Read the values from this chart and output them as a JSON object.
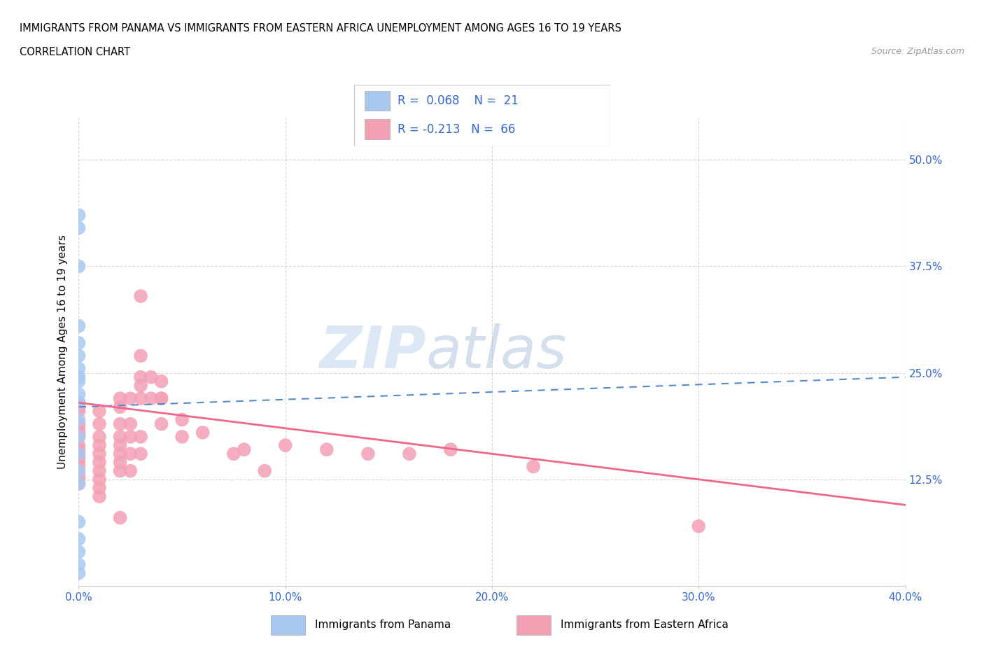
{
  "title_line1": "IMMIGRANTS FROM PANAMA VS IMMIGRANTS FROM EASTERN AFRICA UNEMPLOYMENT AMONG AGES 16 TO 19 YEARS",
  "title_line2": "CORRELATION CHART",
  "source_text": "Source: ZipAtlas.com",
  "ylabel": "Unemployment Among Ages 16 to 19 years",
  "watermark_zip": "ZIP",
  "watermark_atlas": "atlas",
  "xlim": [
    0.0,
    0.4
  ],
  "ylim": [
    0.0,
    0.55
  ],
  "xtick_values": [
    0.0,
    0.1,
    0.2,
    0.3,
    0.4
  ],
  "ytick_values": [
    0.0,
    0.125,
    0.25,
    0.375,
    0.5
  ],
  "ytick_labels": [
    "",
    "12.5%",
    "25.0%",
    "37.5%",
    "50.0%"
  ],
  "R_panama": 0.068,
  "N_panama": 21,
  "R_eastern_africa": -0.213,
  "N_eastern_africa": 66,
  "panama_color": "#a8c8f0",
  "eastern_africa_color": "#f4a0b4",
  "panama_line_color": "#5588cc",
  "eastern_africa_line_color": "#ee6688",
  "legend_color": "#3366cc",
  "panama_scatter": [
    [
      0.0,
      0.435
    ],
    [
      0.0,
      0.42
    ],
    [
      0.0,
      0.375
    ],
    [
      0.0,
      0.305
    ],
    [
      0.0,
      0.285
    ],
    [
      0.0,
      0.27
    ],
    [
      0.0,
      0.255
    ],
    [
      0.0,
      0.245
    ],
    [
      0.0,
      0.24
    ],
    [
      0.0,
      0.225
    ],
    [
      0.0,
      0.215
    ],
    [
      0.0,
      0.195
    ],
    [
      0.0,
      0.175
    ],
    [
      0.0,
      0.155
    ],
    [
      0.0,
      0.135
    ],
    [
      0.0,
      0.12
    ],
    [
      0.0,
      0.075
    ],
    [
      0.0,
      0.055
    ],
    [
      0.0,
      0.04
    ],
    [
      0.0,
      0.025
    ],
    [
      0.0,
      0.015
    ]
  ],
  "eastern_africa_scatter": [
    [
      0.0,
      0.215
    ],
    [
      0.0,
      0.205
    ],
    [
      0.0,
      0.21
    ],
    [
      0.0,
      0.19
    ],
    [
      0.0,
      0.185
    ],
    [
      0.0,
      0.18
    ],
    [
      0.0,
      0.175
    ],
    [
      0.0,
      0.165
    ],
    [
      0.0,
      0.16
    ],
    [
      0.0,
      0.155
    ],
    [
      0.0,
      0.15
    ],
    [
      0.0,
      0.145
    ],
    [
      0.0,
      0.14
    ],
    [
      0.0,
      0.13
    ],
    [
      0.0,
      0.125
    ],
    [
      0.0,
      0.12
    ],
    [
      0.01,
      0.205
    ],
    [
      0.01,
      0.19
    ],
    [
      0.01,
      0.175
    ],
    [
      0.01,
      0.165
    ],
    [
      0.01,
      0.155
    ],
    [
      0.01,
      0.145
    ],
    [
      0.01,
      0.135
    ],
    [
      0.01,
      0.125
    ],
    [
      0.01,
      0.115
    ],
    [
      0.01,
      0.105
    ],
    [
      0.02,
      0.22
    ],
    [
      0.02,
      0.21
    ],
    [
      0.02,
      0.19
    ],
    [
      0.02,
      0.175
    ],
    [
      0.02,
      0.165
    ],
    [
      0.02,
      0.155
    ],
    [
      0.02,
      0.145
    ],
    [
      0.02,
      0.135
    ],
    [
      0.02,
      0.08
    ],
    [
      0.025,
      0.22
    ],
    [
      0.025,
      0.19
    ],
    [
      0.025,
      0.175
    ],
    [
      0.025,
      0.155
    ],
    [
      0.025,
      0.135
    ],
    [
      0.03,
      0.34
    ],
    [
      0.03,
      0.27
    ],
    [
      0.03,
      0.245
    ],
    [
      0.03,
      0.235
    ],
    [
      0.03,
      0.22
    ],
    [
      0.03,
      0.175
    ],
    [
      0.03,
      0.155
    ],
    [
      0.035,
      0.245
    ],
    [
      0.035,
      0.22
    ],
    [
      0.04,
      0.22
    ],
    [
      0.04,
      0.24
    ],
    [
      0.04,
      0.22
    ],
    [
      0.04,
      0.19
    ],
    [
      0.05,
      0.195
    ],
    [
      0.05,
      0.175
    ],
    [
      0.06,
      0.18
    ],
    [
      0.075,
      0.155
    ],
    [
      0.08,
      0.16
    ],
    [
      0.09,
      0.135
    ],
    [
      0.1,
      0.165
    ],
    [
      0.12,
      0.16
    ],
    [
      0.14,
      0.155
    ],
    [
      0.16,
      0.155
    ],
    [
      0.18,
      0.16
    ],
    [
      0.22,
      0.14
    ],
    [
      0.3,
      0.07
    ]
  ],
  "panama_trendline": [
    0.0,
    0.21,
    0.4,
    0.245
  ],
  "ea_trendline": [
    0.0,
    0.215,
    0.4,
    0.095
  ]
}
